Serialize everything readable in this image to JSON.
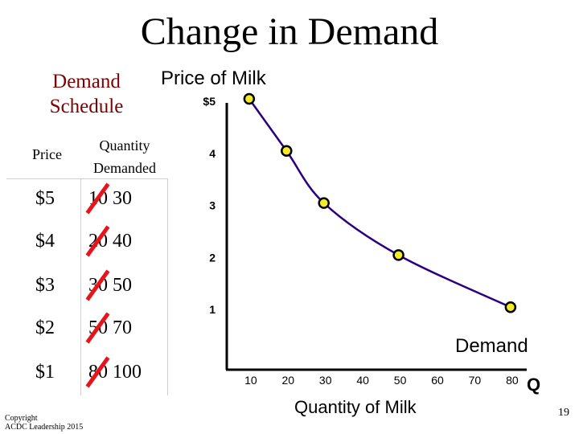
{
  "slide": {
    "title": "Change in Demand",
    "copyright_line1": "Copyright",
    "copyright_line2": "ACDC Leadership 2015",
    "page_number": "19"
  },
  "schedule": {
    "title_line1": "Demand",
    "title_line2": "Schedule",
    "header_price": "Price",
    "header_qty_line1": "Quantity",
    "header_qty_line2": "Demanded",
    "rows": [
      {
        "price": "$5",
        "old_qty": "10",
        "new_qty": "30"
      },
      {
        "price": "$4",
        "old_qty": "20",
        "new_qty": "40"
      },
      {
        "price": "$3",
        "old_qty": "30",
        "new_qty": "50"
      },
      {
        "price": "$2",
        "old_qty": "50",
        "new_qty": "70"
      },
      {
        "price": "$1",
        "old_qty": "80",
        "new_qty": "100"
      }
    ],
    "strike_color": "#e8141b"
  },
  "chart_data": {
    "type": "line",
    "title": "Price of Milk",
    "xlabel": "Quantity of Milk",
    "x_axis_symbol": "Q",
    "series": [
      {
        "name": "Demand",
        "x": [
          10,
          20,
          30,
          50,
          80
        ],
        "y": [
          5,
          4,
          3,
          2,
          1
        ]
      }
    ],
    "x_ticks": [
      "10",
      "20",
      "30",
      "40",
      "50",
      "60",
      "70",
      "80"
    ],
    "y_ticks": [
      "$5",
      "4",
      "3",
      "2",
      "1"
    ],
    "xlim": [
      4,
      88
    ],
    "ylim": [
      -0.2,
      5.2
    ],
    "grid": false,
    "marker_color": "#f5ea2a",
    "line_color": "#2b0080"
  }
}
